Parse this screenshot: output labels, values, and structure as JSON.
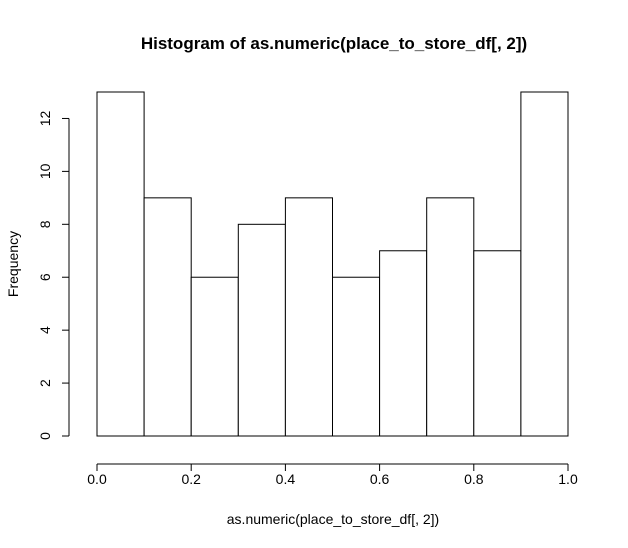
{
  "chart_data": {
    "type": "bar",
    "title": "Histogram of as.numeric(place_to_store_df[, 2])",
    "xlabel": "as.numeric(place_to_store_df[, 2])",
    "ylabel": "Frequency",
    "bins": [
      [
        0.0,
        0.1
      ],
      [
        0.1,
        0.2
      ],
      [
        0.2,
        0.3
      ],
      [
        0.3,
        0.4
      ],
      [
        0.4,
        0.5
      ],
      [
        0.5,
        0.6
      ],
      [
        0.6,
        0.7
      ],
      [
        0.7,
        0.8
      ],
      [
        0.8,
        0.9
      ],
      [
        0.9,
        1.0
      ]
    ],
    "values": [
      13,
      9,
      6,
      8,
      9,
      6,
      7,
      9,
      7,
      13
    ],
    "xlim": [
      0.0,
      1.0
    ],
    "ylim": [
      0,
      13
    ],
    "x_ticks": [
      0.0,
      0.2,
      0.4,
      0.6,
      0.8,
      1.0
    ],
    "x_tick_labels": [
      "0.0",
      "0.2",
      "0.4",
      "0.6",
      "0.8",
      "1.0"
    ],
    "y_ticks": [
      0,
      2,
      4,
      6,
      8,
      10,
      12
    ],
    "y_tick_labels": [
      "0",
      "2",
      "4",
      "6",
      "8",
      "10",
      "12"
    ],
    "grid": false,
    "colors": {
      "bar_fill": "#ffffff",
      "bar_stroke": "#000000",
      "text": "#000000",
      "background": "#ffffff"
    }
  }
}
